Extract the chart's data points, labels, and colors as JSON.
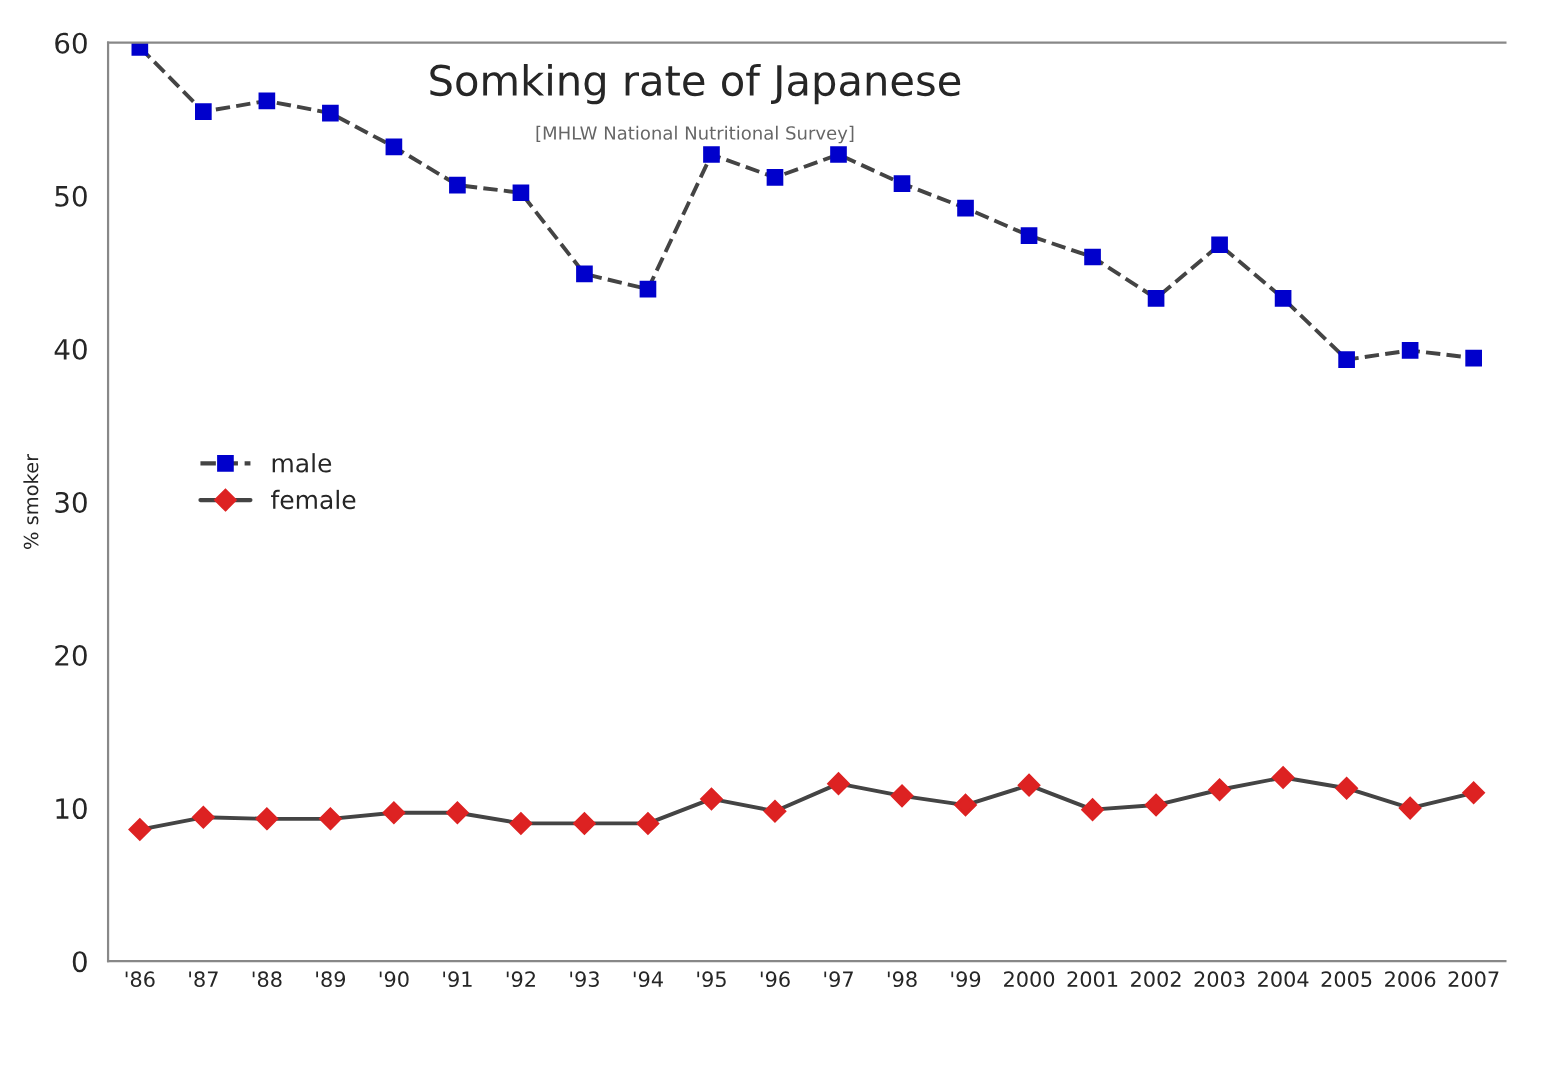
{
  "chart_data": {
    "type": "line",
    "title": "Somking rate of Japanese",
    "subtitle": "[MHLW National Nutritional Survey]",
    "ylabel": "% smoker",
    "categories": [
      "'86",
      "'87",
      "'88",
      "'89",
      "'90",
      "'91",
      "'92",
      "'93",
      "'94",
      "'95",
      "'96",
      "'97",
      "'98",
      "'99",
      "2000",
      "2001",
      "2002",
      "2003",
      "2004",
      "2005",
      "2006",
      "2007"
    ],
    "series": [
      {
        "name": "male",
        "color": "#0000cc",
        "marker": "square",
        "line_style": "dashed",
        "values": [
          59.7,
          55.5,
          56.2,
          55.4,
          53.2,
          50.7,
          50.2,
          44.9,
          43.9,
          52.7,
          51.2,
          52.7,
          50.8,
          49.2,
          47.4,
          46.0,
          43.3,
          46.8,
          43.3,
          39.3,
          39.9,
          39.4
        ]
      },
      {
        "name": "female",
        "color": "#dd2222",
        "marker": "diamond",
        "line_style": "solid",
        "values": [
          8.6,
          9.4,
          9.3,
          9.3,
          9.7,
          9.7,
          9.0,
          9.0,
          9.0,
          10.6,
          9.8,
          11.6,
          10.8,
          10.2,
          11.5,
          9.9,
          10.2,
          11.2,
          12.0,
          11.3,
          10.0,
          11.0
        ]
      }
    ],
    "ylim": [
      0,
      60
    ],
    "yticks": [
      0,
      10,
      20,
      30,
      40,
      50,
      60
    ],
    "grid": false,
    "legend": "center left"
  }
}
